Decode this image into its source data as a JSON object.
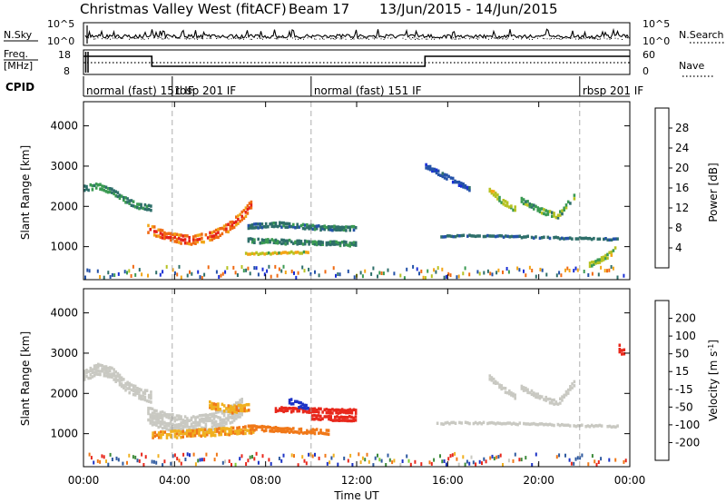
{
  "title": {
    "station": "Christmas Valley West (fitACF)",
    "beam": "Beam 17",
    "date_range": "13/Jun/2015 - 14/Jun/2015"
  },
  "side_labels": {
    "nsky": "N.Sky",
    "nsearch": "N.Search",
    "freq_line1": "Freq.",
    "freq_line2": "[MHz]",
    "nave": "Nave",
    "cpid": "CPID"
  },
  "noise_axis": {
    "left_ticks": [
      "10^5",
      "10^0"
    ],
    "right_ticks": [
      "10^5",
      "10^0"
    ]
  },
  "freq_axis": {
    "left_ticks": [
      "18",
      "8"
    ],
    "right_ticks": [
      "60",
      "0"
    ]
  },
  "cpid_segments": [
    {
      "start_hour": 0.0,
      "label": "normal (fast) 151 IF"
    },
    {
      "start_hour": 3.9,
      "label": "rbsp 201 IF"
    },
    {
      "start_hour": 10.0,
      "label": "normal (fast) 151 IF"
    },
    {
      "start_hour": 21.8,
      "label": "rbsp 201 IF"
    }
  ],
  "time_axis": {
    "label": "Time UT",
    "tick_labels": [
      "00:00",
      "04:00",
      "08:00",
      "12:00",
      "16:00",
      "20:00",
      "00:00"
    ],
    "range_hours": [
      0,
      24
    ]
  },
  "power_colorbar": {
    "label": "Power [dB]",
    "ticks": [
      "28",
      "24",
      "20",
      "16",
      "12",
      "8",
      "4"
    ]
  },
  "velocity_colorbar": {
    "label": "Velocity [m s-1]",
    "label_main": "Velocity [m s",
    "label_sup": "-1",
    "label_end": "]",
    "ticks": [
      "200",
      "100",
      "50",
      "15",
      "-15",
      "-50",
      "-100",
      "-200"
    ]
  },
  "chart_data": [
    {
      "type": "heatmap",
      "panel": "power",
      "xlabel": "Time UT",
      "ylabel": "Slant Range [km]",
      "xlim": [
        0,
        24
      ],
      "ylim": [
        180,
        4600
      ],
      "yticks": [
        1000,
        2000,
        3000,
        4000
      ],
      "colorbar": {
        "label": "Power [dB]",
        "range": [
          0,
          30
        ]
      },
      "echo_bands": [
        {
          "t": [
            0.0,
            0.6,
            1.2,
            1.8,
            2.4,
            3.0
          ],
          "r": [
            2450,
            2500,
            2380,
            2150,
            2000,
            1950
          ],
          "width": 180,
          "power": 14
        },
        {
          "t": [
            2.8,
            3.6,
            4.6,
            5.6,
            6.4,
            7.0,
            7.4
          ],
          "r": [
            1450,
            1250,
            1150,
            1250,
            1500,
            1800,
            2100
          ],
          "width": 260,
          "power": 27
        },
        {
          "t": [
            7.2,
            8.4,
            9.6,
            10.8,
            12.0
          ],
          "r": [
            1500,
            1550,
            1500,
            1450,
            1450
          ],
          "width": 140,
          "power": 12
        },
        {
          "t": [
            7.2,
            8.4,
            9.6,
            10.8,
            12.0
          ],
          "r": [
            1150,
            1120,
            1100,
            1080,
            1060
          ],
          "width": 120,
          "power": 14
        },
        {
          "t": [
            7.0,
            8.0,
            9.0,
            10.0
          ],
          "r": [
            820,
            830,
            850,
            860
          ],
          "width": 100,
          "power": 18
        },
        {
          "t": [
            17.8,
            18.4,
            19.0
          ],
          "r": [
            2400,
            2100,
            1900
          ],
          "width": 150,
          "power": 18
        },
        {
          "t": [
            19.2,
            20.0,
            20.8,
            21.6
          ],
          "r": [
            2150,
            1900,
            1750,
            2300
          ],
          "width": 150,
          "power": 16
        },
        {
          "t": [
            22.2,
            22.8,
            23.4
          ],
          "r": [
            550,
            700,
            950
          ],
          "width": 150,
          "power": 18
        },
        {
          "t": [
            15.5,
            17.0,
            18.5,
            20.0,
            21.5,
            23.5
          ],
          "r": [
            1250,
            1270,
            1250,
            1230,
            1200,
            1180
          ],
          "width": 90,
          "power": 10
        },
        {
          "t": [
            15.0,
            16.0,
            17.0
          ],
          "r": [
            3000,
            2700,
            2400
          ],
          "width": 120,
          "power": 8
        }
      ]
    },
    {
      "type": "heatmap",
      "panel": "velocity",
      "xlabel": "Time UT",
      "ylabel": "Slant Range [km]",
      "xlim": [
        0,
        24
      ],
      "ylim": [
        180,
        4600
      ],
      "yticks": [
        1000,
        2000,
        3000,
        4000
      ],
      "colorbar": {
        "label": "Velocity [m s-1]",
        "range": [
          -250,
          250
        ]
      },
      "echo_bands": [
        {
          "t": [
            0.0,
            0.6,
            1.2,
            1.8,
            2.4,
            3.0
          ],
          "r": [
            2450,
            2600,
            2500,
            2200,
            2000,
            1900
          ],
          "width": 300,
          "velocity": 0
        },
        {
          "t": [
            2.8,
            3.6,
            4.6,
            5.6,
            6.4,
            7.0
          ],
          "r": [
            1450,
            1300,
            1200,
            1300,
            1450,
            1700
          ],
          "width": 450,
          "velocity": 0
        },
        {
          "t": [
            3.0,
            4.5,
            6.0,
            7.5
          ],
          "r": [
            950,
            1000,
            1050,
            1100
          ],
          "width": 200,
          "velocity": -45
        },
        {
          "t": [
            8.4,
            9.6,
            10.8,
            12.0
          ],
          "r": [
            1600,
            1580,
            1560,
            1540
          ],
          "width": 130,
          "velocity": -210
        },
        {
          "t": [
            10.0,
            11.0,
            12.0
          ],
          "r": [
            1400,
            1380,
            1370
          ],
          "width": 150,
          "velocity": -190
        },
        {
          "t": [
            7.2,
            8.4,
            9.6,
            10.8
          ],
          "r": [
            1150,
            1100,
            1060,
            1040
          ],
          "width": 150,
          "velocity": -70
        },
        {
          "t": [
            9.0,
            9.5,
            9.9
          ],
          "r": [
            1800,
            1700,
            1650
          ],
          "width": 180,
          "velocity": 170
        },
        {
          "t": [
            5.5,
            6.5,
            7.3
          ],
          "r": [
            1700,
            1600,
            1650
          ],
          "width": 200,
          "velocity": -40
        },
        {
          "t": [
            17.8,
            18.4,
            19.0
          ],
          "r": [
            2400,
            2100,
            1900
          ],
          "width": 150,
          "velocity": 0
        },
        {
          "t": [
            19.2,
            20.0,
            20.8,
            21.6
          ],
          "r": [
            2150,
            1900,
            1750,
            2300
          ],
          "width": 150,
          "velocity": 0
        },
        {
          "t": [
            15.5,
            17.0,
            18.5,
            20.0,
            21.5,
            23.5
          ],
          "r": [
            1250,
            1270,
            1250,
            1230,
            1200,
            1180
          ],
          "width": 100,
          "velocity": 0
        },
        {
          "t": [
            23.5,
            23.8
          ],
          "r": [
            3100,
            2950
          ],
          "width": 250,
          "velocity": -230
        }
      ]
    }
  ]
}
